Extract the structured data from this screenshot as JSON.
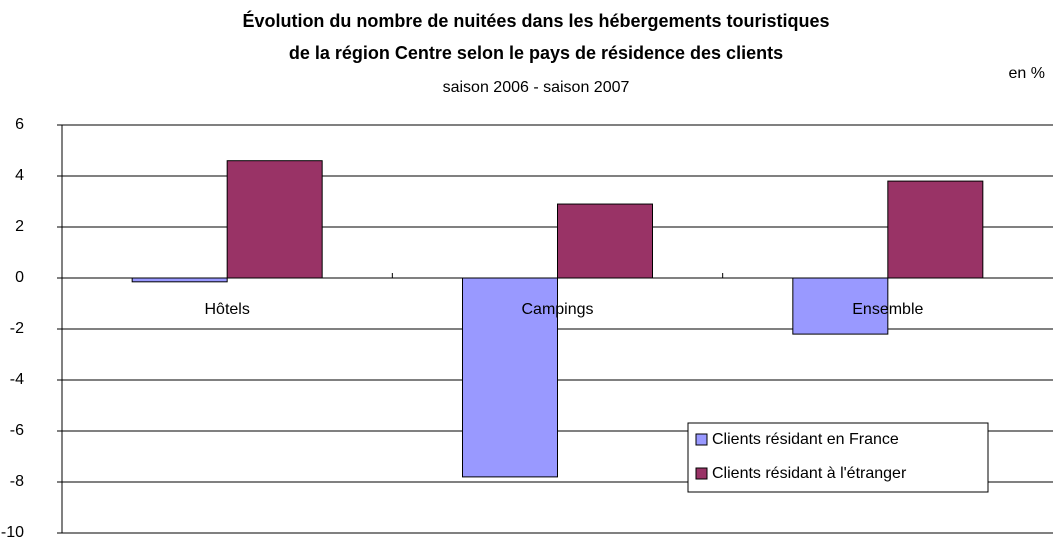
{
  "chart_data": {
    "type": "bar",
    "title": [
      "Évolution du nombre de nuitées dans les hébergements touristiques",
      "de la région Centre selon le pays de résidence des clients"
    ],
    "subtitle": "saison 2006 - saison 2007",
    "unit_label": "en %",
    "categories": [
      "Hôtels",
      "Campings",
      "Ensemble"
    ],
    "series": [
      {
        "name": "Clients résidant en France",
        "color": "#9999ff",
        "values": [
          -0.15,
          -7.8,
          -2.2
        ]
      },
      {
        "name": "Clients résidant à l'étranger",
        "color": "#993366",
        "values": [
          4.6,
          2.9,
          3.8
        ]
      }
    ],
    "ylim": [
      -10,
      6
    ],
    "yticks": [
      -10,
      -8,
      -6,
      -4,
      -2,
      0,
      2,
      4,
      6
    ],
    "grid": true,
    "legend": "lower right"
  }
}
